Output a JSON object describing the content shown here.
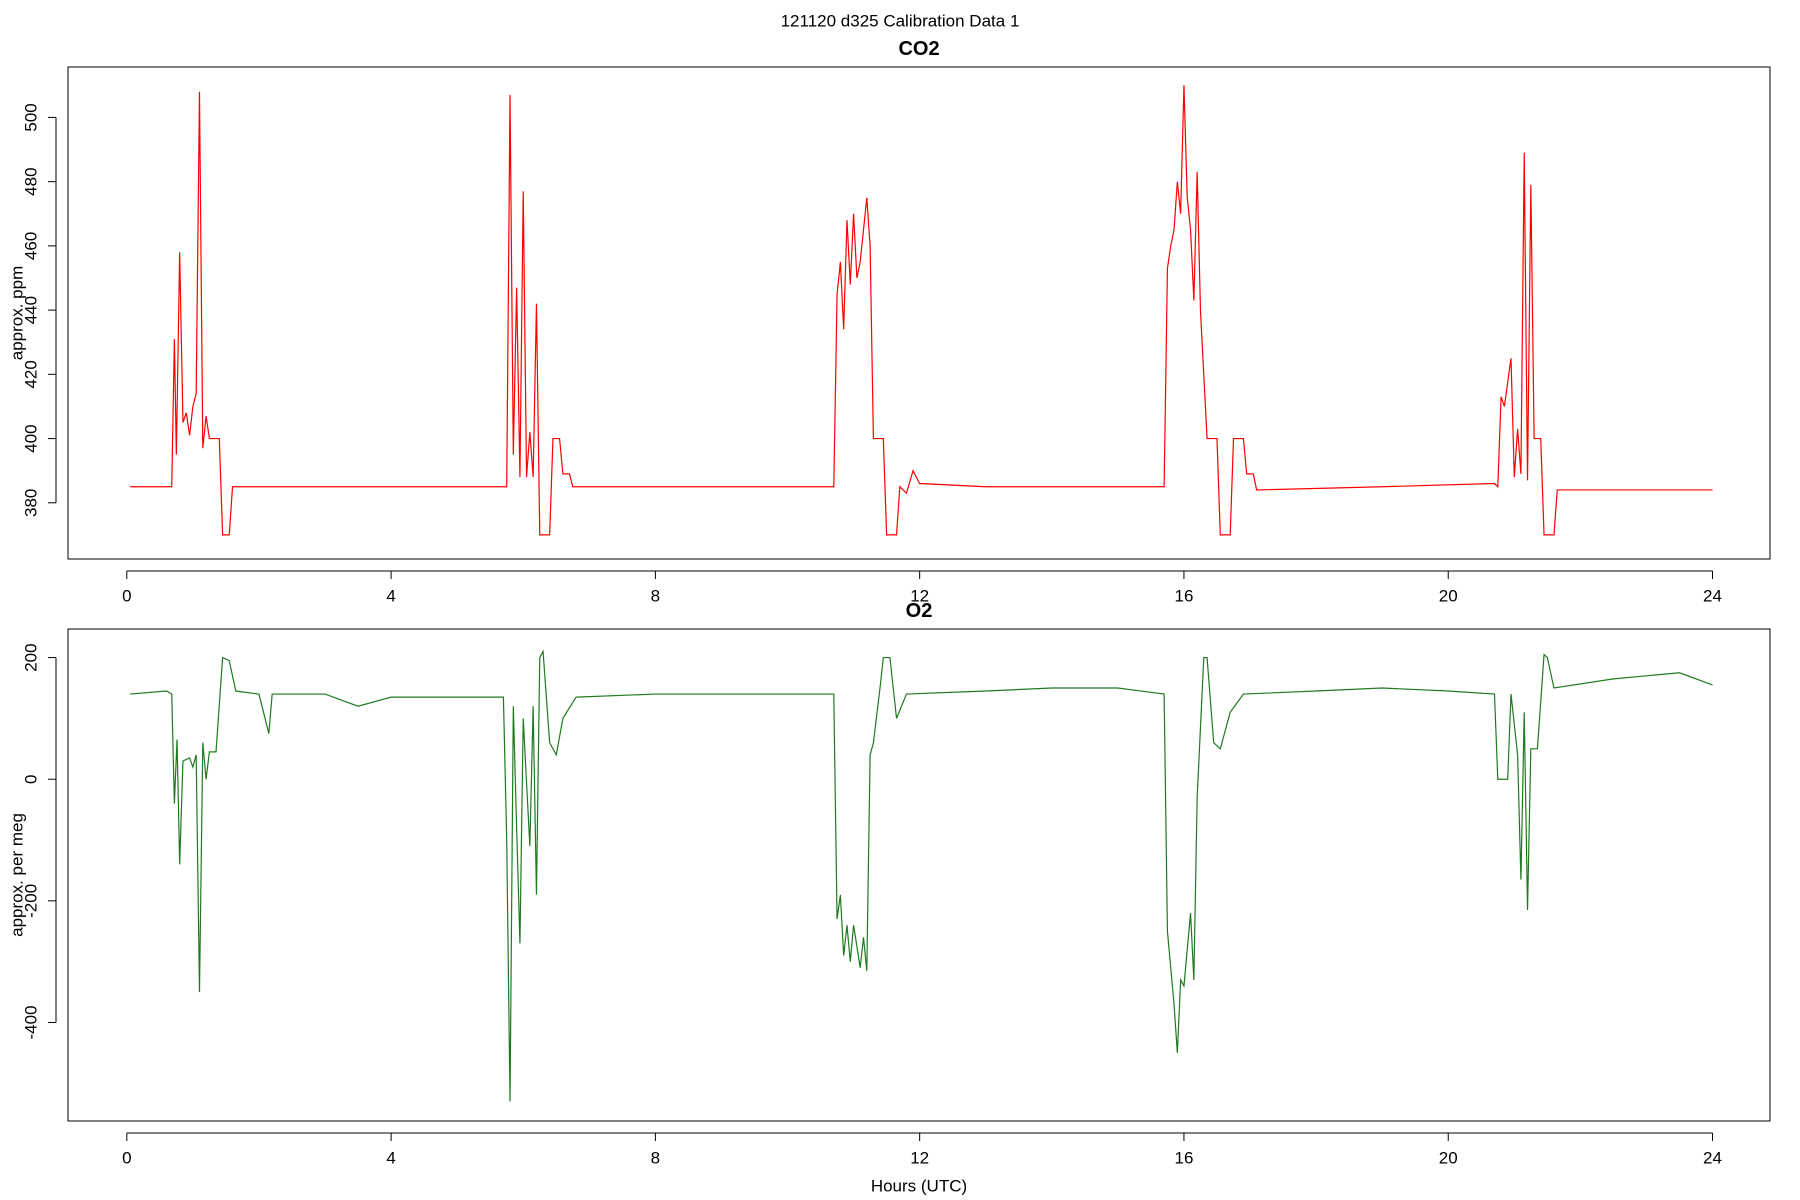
{
  "title": "121120   d325   Calibration Data 1",
  "chart_data": [
    {
      "type": "line",
      "title": "CO2",
      "y_label": "approx. ppm",
      "x": [
        0.05,
        0.68,
        0.72,
        0.75,
        0.8,
        0.85,
        0.9,
        0.95,
        1.0,
        1.05,
        1.1,
        1.15,
        1.2,
        1.25,
        1.35,
        1.4,
        1.45,
        1.55,
        1.6,
        2,
        5.7,
        5.75,
        5.8,
        5.85,
        5.9,
        5.95,
        6.0,
        6.05,
        6.1,
        6.15,
        6.2,
        6.25,
        6.4,
        6.45,
        6.55,
        6.6,
        6.7,
        6.75,
        10.7,
        10.75,
        10.8,
        10.85,
        10.9,
        10.95,
        11.0,
        11.05,
        11.1,
        11.15,
        11.2,
        11.25,
        11.3,
        11.45,
        11.5,
        11.65,
        11.7,
        11.8,
        11.9,
        12.0,
        13,
        15.7,
        15.75,
        15.8,
        15.85,
        15.9,
        15.95,
        16.0,
        16.05,
        16.1,
        16.15,
        16.2,
        16.25,
        16.35,
        16.5,
        16.55,
        16.7,
        16.75,
        16.9,
        16.95,
        17.05,
        17.1,
        19,
        20.7,
        20.75,
        20.8,
        20.85,
        20.95,
        21.0,
        21.05,
        21.1,
        21.15,
        21.2,
        21.25,
        21.3,
        21.4,
        21.45,
        21.6,
        21.65,
        24
      ],
      "series": [
        {
          "name": "CO2",
          "color": "#ff0000",
          "values": [
            385,
            385,
            431,
            395,
            458,
            405,
            408,
            401,
            410,
            414,
            508,
            397,
            407,
            400,
            400,
            400,
            370,
            370,
            385,
            385,
            385,
            385,
            507,
            395,
            447,
            388,
            477,
            388,
            402,
            388,
            442,
            370,
            370,
            400,
            400,
            389,
            389,
            385,
            385,
            445,
            455,
            434,
            468,
            448,
            470,
            450,
            455,
            465,
            475,
            460,
            400,
            400,
            370,
            370,
            385,
            383,
            390,
            386,
            385,
            385,
            453,
            460,
            465,
            480,
            470,
            510,
            475,
            465,
            443,
            483,
            440,
            400,
            400,
            370,
            370,
            400,
            400,
            389,
            389,
            384,
            385,
            386,
            385,
            413,
            410,
            425,
            388,
            403,
            389,
            489,
            387,
            479,
            400,
            400,
            370,
            370,
            384,
            384
          ]
        }
      ],
      "xlim": [
        -0.89,
        24.87
      ],
      "xticks": [
        0,
        4,
        8,
        12,
        16,
        20,
        24
      ],
      "ylim": [
        362.5,
        515.7
      ],
      "yticks": [
        380,
        400,
        420,
        440,
        460,
        480,
        500
      ],
      "grid": false
    },
    {
      "type": "line",
      "title": "O2",
      "y_label": "approx. per meg",
      "x_label": "Hours (UTC)",
      "x": [
        0.05,
        0.6,
        0.68,
        0.72,
        0.76,
        0.8,
        0.85,
        0.95,
        1.0,
        1.05,
        1.1,
        1.15,
        1.2,
        1.25,
        1.35,
        1.45,
        1.55,
        1.65,
        2.0,
        2.15,
        2.2,
        3,
        3.5,
        4,
        5,
        5.7,
        5.75,
        5.8,
        5.85,
        5.9,
        5.95,
        6.0,
        6.1,
        6.15,
        6.2,
        6.25,
        6.3,
        6.4,
        6.5,
        6.6,
        6.8,
        8,
        9,
        10.7,
        10.75,
        10.8,
        10.85,
        10.9,
        10.95,
        11.0,
        11.1,
        11.15,
        11.2,
        11.25,
        11.3,
        11.4,
        11.45,
        11.55,
        11.65,
        11.8,
        13,
        14,
        15,
        15.7,
        15.75,
        15.8,
        15.85,
        15.9,
        15.95,
        16.0,
        16.1,
        16.15,
        16.2,
        16.3,
        16.35,
        16.45,
        16.55,
        16.7,
        16.9,
        18,
        19,
        20,
        20.7,
        20.75,
        20.9,
        20.95,
        21.05,
        21.1,
        21.15,
        21.2,
        21.25,
        21.35,
        21.45,
        21.5,
        21.6,
        22.5,
        23.5,
        24
      ],
      "series": [
        {
          "name": "O2",
          "color": "#1f7a1f",
          "values": [
            140,
            145,
            140,
            -40,
            65,
            -140,
            30,
            35,
            20,
            40,
            -350,
            60,
            0,
            45,
            45,
            200,
            195,
            145,
            140,
            75,
            140,
            140,
            120,
            135,
            135,
            135,
            -100,
            -530,
            120,
            -80,
            -270,
            100,
            -110,
            120,
            -190,
            200,
            210,
            60,
            40,
            100,
            135,
            140,
            140,
            140,
            -230,
            -190,
            -290,
            -240,
            -300,
            -240,
            -310,
            -260,
            -315,
            40,
            60,
            150,
            200,
            200,
            100,
            140,
            145,
            150,
            150,
            140,
            -250,
            -310,
            -370,
            -450,
            -330,
            -340,
            -220,
            -330,
            -30,
            200,
            200,
            60,
            50,
            110,
            140,
            145,
            150,
            145,
            140,
            0,
            0,
            140,
            40,
            -165,
            110,
            -215,
            50,
            50,
            205,
            200,
            150,
            165,
            175,
            155
          ]
        }
      ],
      "xlim": [
        -0.89,
        24.87
      ],
      "xticks": [
        0,
        4,
        8,
        12,
        16,
        20,
        24
      ],
      "ylim": [
        -562,
        247
      ],
      "yticks": [
        -400,
        -200,
        0,
        200
      ],
      "grid": false
    }
  ]
}
